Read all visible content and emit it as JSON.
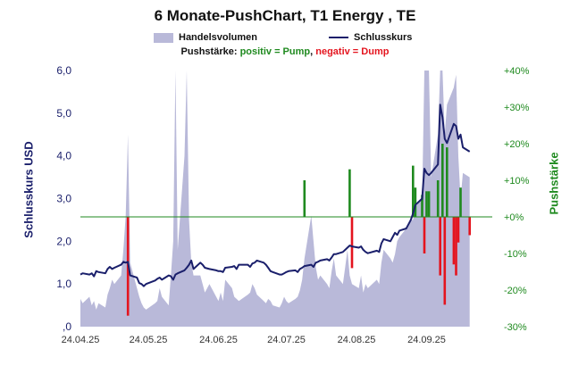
{
  "chart_data": {
    "type": "line",
    "title": "6 Monate-PushChart, T1 Energy , TE",
    "legend": {
      "volume_label": "Handelsvolumen",
      "close_label": "Schlusskurs",
      "push_prefix": "Pushstärke: ",
      "push_positive": "positiv = Pump",
      "push_separator": ", ",
      "push_negative": "negativ = Dump"
    },
    "ylabel_left": "Schlusskurs USD",
    "ylabel_right": "Pushstärke",
    "ylim_left": [
      0,
      6
    ],
    "ylim_right": [
      -30,
      40
    ],
    "left_ticks": [
      ",0",
      "1,0",
      "2,0",
      "3,0",
      "4,0",
      "5,0",
      "6,0"
    ],
    "right_ticks": [
      "-30%",
      "-20%",
      "-10%",
      "+0%",
      "+10%",
      "+20%",
      "+30%",
      "+40%"
    ],
    "x_ticks": [
      "24.04.25",
      "24.05.25",
      "24.06.25",
      "24.07.25",
      "24.08.25",
      "24.09.25"
    ],
    "x_range": [
      "2025-04-24",
      "2025-10-23"
    ],
    "series": [
      {
        "name": "Schlusskurs",
        "axis": "left",
        "points": [
          [
            "2025-04-24",
            1.22
          ],
          [
            "2025-04-25",
            1.25
          ],
          [
            "2025-04-28",
            1.22
          ],
          [
            "2025-04-29",
            1.25
          ],
          [
            "2025-04-30",
            1.18
          ],
          [
            "2025-05-01",
            1.3
          ],
          [
            "2025-05-02",
            1.28
          ],
          [
            "2025-05-05",
            1.25
          ],
          [
            "2025-05-06",
            1.35
          ],
          [
            "2025-05-07",
            1.4
          ],
          [
            "2025-05-08",
            1.35
          ],
          [
            "2025-05-09",
            1.38
          ],
          [
            "2025-05-12",
            1.45
          ],
          [
            "2025-05-13",
            1.52
          ],
          [
            "2025-05-14",
            1.5
          ],
          [
            "2025-05-15",
            1.52
          ],
          [
            "2025-05-16",
            1.2
          ],
          [
            "2025-05-19",
            1.15
          ],
          [
            "2025-05-20",
            1.02
          ],
          [
            "2025-05-21",
            1.0
          ],
          [
            "2025-05-22",
            0.95
          ],
          [
            "2025-05-23",
            1.0
          ],
          [
            "2025-05-27",
            1.08
          ],
          [
            "2025-05-28",
            1.12
          ],
          [
            "2025-05-29",
            1.15
          ],
          [
            "2025-05-30",
            1.1
          ],
          [
            "2025-06-02",
            1.2
          ],
          [
            "2025-06-03",
            1.18
          ],
          [
            "2025-06-04",
            1.1
          ],
          [
            "2025-06-05",
            1.22
          ],
          [
            "2025-06-06",
            1.25
          ],
          [
            "2025-06-09",
            1.32
          ],
          [
            "2025-06-10",
            1.38
          ],
          [
            "2025-06-11",
            1.45
          ],
          [
            "2025-06-12",
            1.55
          ],
          [
            "2025-06-13",
            1.35
          ],
          [
            "2025-06-16",
            1.5
          ],
          [
            "2025-06-17",
            1.45
          ],
          [
            "2025-06-18",
            1.38
          ],
          [
            "2025-06-20",
            1.35
          ],
          [
            "2025-06-23",
            1.32
          ],
          [
            "2025-06-24",
            1.3
          ],
          [
            "2025-06-25",
            1.3
          ],
          [
            "2025-06-26",
            1.28
          ],
          [
            "2025-06-27",
            1.38
          ],
          [
            "2025-06-30",
            1.4
          ],
          [
            "2025-07-01",
            1.42
          ],
          [
            "2025-07-02",
            1.35
          ],
          [
            "2025-07-03",
            1.45
          ],
          [
            "2025-07-07",
            1.45
          ],
          [
            "2025-07-08",
            1.4
          ],
          [
            "2025-07-09",
            1.48
          ],
          [
            "2025-07-10",
            1.5
          ],
          [
            "2025-07-11",
            1.55
          ],
          [
            "2025-07-14",
            1.5
          ],
          [
            "2025-07-15",
            1.45
          ],
          [
            "2025-07-16",
            1.38
          ],
          [
            "2025-07-17",
            1.3
          ],
          [
            "2025-07-18",
            1.28
          ],
          [
            "2025-07-21",
            1.22
          ],
          [
            "2025-07-22",
            1.22
          ],
          [
            "2025-07-23",
            1.25
          ],
          [
            "2025-07-24",
            1.28
          ],
          [
            "2025-07-25",
            1.3
          ],
          [
            "2025-07-28",
            1.32
          ],
          [
            "2025-07-29",
            1.28
          ],
          [
            "2025-07-30",
            1.35
          ],
          [
            "2025-07-31",
            1.38
          ],
          [
            "2025-08-01",
            1.42
          ],
          [
            "2025-08-04",
            1.45
          ],
          [
            "2025-08-05",
            1.4
          ],
          [
            "2025-08-06",
            1.5
          ],
          [
            "2025-08-07",
            1.52
          ],
          [
            "2025-08-08",
            1.55
          ],
          [
            "2025-08-11",
            1.58
          ],
          [
            "2025-08-12",
            1.55
          ],
          [
            "2025-08-13",
            1.62
          ],
          [
            "2025-08-14",
            1.7
          ],
          [
            "2025-08-15",
            1.7
          ],
          [
            "2025-08-18",
            1.75
          ],
          [
            "2025-08-19",
            1.8
          ],
          [
            "2025-08-20",
            1.85
          ],
          [
            "2025-08-21",
            1.9
          ],
          [
            "2025-08-22",
            1.88
          ],
          [
            "2025-08-25",
            1.85
          ],
          [
            "2025-08-26",
            1.88
          ],
          [
            "2025-08-27",
            1.8
          ],
          [
            "2025-08-28",
            1.75
          ],
          [
            "2025-08-29",
            1.72
          ],
          [
            "2025-09-02",
            1.78
          ],
          [
            "2025-09-03",
            1.75
          ],
          [
            "2025-09-04",
            1.95
          ],
          [
            "2025-09-05",
            2.05
          ],
          [
            "2025-09-08",
            2.0
          ],
          [
            "2025-09-09",
            2.1
          ],
          [
            "2025-09-10",
            2.2
          ],
          [
            "2025-09-11",
            2.15
          ],
          [
            "2025-09-12",
            2.25
          ],
          [
            "2025-09-15",
            2.3
          ],
          [
            "2025-09-16",
            2.4
          ],
          [
            "2025-09-17",
            2.5
          ],
          [
            "2025-09-18",
            2.65
          ],
          [
            "2025-09-19",
            2.85
          ],
          [
            "2025-09-22",
            3.0
          ],
          [
            "2025-09-23",
            3.7
          ],
          [
            "2025-09-24",
            3.6
          ],
          [
            "2025-09-25",
            3.55
          ],
          [
            "2025-09-26",
            3.6
          ],
          [
            "2025-09-29",
            3.8
          ],
          [
            "2025-09-30",
            5.2
          ],
          [
            "2025-10-01",
            4.9
          ],
          [
            "2025-10-02",
            4.4
          ],
          [
            "2025-10-03",
            4.3
          ],
          [
            "2025-10-06",
            4.75
          ],
          [
            "2025-10-07",
            4.7
          ],
          [
            "2025-10-08",
            4.4
          ],
          [
            "2025-10-09",
            4.5
          ],
          [
            "2025-10-10",
            4.2
          ],
          [
            "2025-10-13",
            4.1
          ]
        ]
      },
      {
        "name": "Handelsvolumen",
        "axis": "left",
        "scale": "relative",
        "points": [
          [
            "2025-04-24",
            0.65
          ],
          [
            "2025-04-25",
            0.55
          ],
          [
            "2025-04-28",
            0.7
          ],
          [
            "2025-04-29",
            0.5
          ],
          [
            "2025-04-30",
            0.6
          ],
          [
            "2025-05-01",
            0.4
          ],
          [
            "2025-05-02",
            0.55
          ],
          [
            "2025-05-05",
            0.45
          ],
          [
            "2025-05-06",
            0.75
          ],
          [
            "2025-05-07",
            0.9
          ],
          [
            "2025-05-08",
            1.1
          ],
          [
            "2025-05-09",
            1.0
          ],
          [
            "2025-05-12",
            1.2
          ],
          [
            "2025-05-13",
            1.8
          ],
          [
            "2025-05-14",
            2.6
          ],
          [
            "2025-05-15",
            4.5
          ],
          [
            "2025-05-16",
            1.5
          ],
          [
            "2025-05-19",
            0.9
          ],
          [
            "2025-05-20",
            0.7
          ],
          [
            "2025-05-21",
            0.55
          ],
          [
            "2025-05-22",
            0.45
          ],
          [
            "2025-05-23",
            0.4
          ],
          [
            "2025-05-27",
            0.55
          ],
          [
            "2025-05-28",
            0.6
          ],
          [
            "2025-05-29",
            0.9
          ],
          [
            "2025-05-30",
            0.7
          ],
          [
            "2025-06-02",
            0.5
          ],
          [
            "2025-06-03",
            1.2
          ],
          [
            "2025-06-04",
            2.0
          ],
          [
            "2025-06-05",
            6.0
          ],
          [
            "2025-06-06",
            1.8
          ],
          [
            "2025-06-09",
            4.0
          ],
          [
            "2025-06-10",
            6.0
          ],
          [
            "2025-06-11",
            2.5
          ],
          [
            "2025-06-12",
            1.5
          ],
          [
            "2025-06-13",
            1.2
          ],
          [
            "2025-06-16",
            1.2
          ],
          [
            "2025-06-17",
            1.0
          ],
          [
            "2025-06-18",
            0.8
          ],
          [
            "2025-06-20",
            1.0
          ],
          [
            "2025-06-23",
            0.7
          ],
          [
            "2025-06-24",
            0.6
          ],
          [
            "2025-06-25",
            0.8
          ],
          [
            "2025-06-26",
            0.6
          ],
          [
            "2025-06-27",
            1.1
          ],
          [
            "2025-06-30",
            0.9
          ],
          [
            "2025-07-01",
            0.7
          ],
          [
            "2025-07-02",
            0.65
          ],
          [
            "2025-07-03",
            0.6
          ],
          [
            "2025-07-07",
            0.75
          ],
          [
            "2025-07-08",
            0.8
          ],
          [
            "2025-07-09",
            1.0
          ],
          [
            "2025-07-10",
            0.9
          ],
          [
            "2025-07-11",
            0.75
          ],
          [
            "2025-07-14",
            0.6
          ],
          [
            "2025-07-15",
            0.55
          ],
          [
            "2025-07-16",
            0.65
          ],
          [
            "2025-07-17",
            0.6
          ],
          [
            "2025-07-18",
            0.5
          ],
          [
            "2025-07-21",
            0.45
          ],
          [
            "2025-07-22",
            0.55
          ],
          [
            "2025-07-23",
            0.7
          ],
          [
            "2025-07-24",
            0.6
          ],
          [
            "2025-07-25",
            0.55
          ],
          [
            "2025-07-28",
            0.65
          ],
          [
            "2025-07-29",
            0.7
          ],
          [
            "2025-07-30",
            0.85
          ],
          [
            "2025-07-31",
            1.1
          ],
          [
            "2025-08-01",
            1.6
          ],
          [
            "2025-08-04",
            2.6
          ],
          [
            "2025-08-05",
            2.0
          ],
          [
            "2025-08-06",
            1.4
          ],
          [
            "2025-08-07",
            1.1
          ],
          [
            "2025-08-08",
            1.2
          ],
          [
            "2025-08-11",
            1.0
          ],
          [
            "2025-08-12",
            0.9
          ],
          [
            "2025-08-13",
            1.3
          ],
          [
            "2025-08-14",
            1.6
          ],
          [
            "2025-08-15",
            1.2
          ],
          [
            "2025-08-18",
            1.0
          ],
          [
            "2025-08-19",
            1.4
          ],
          [
            "2025-08-20",
            1.8
          ],
          [
            "2025-08-21",
            1.2
          ],
          [
            "2025-08-22",
            1.0
          ],
          [
            "2025-08-25",
            0.9
          ],
          [
            "2025-08-26",
            1.2
          ],
          [
            "2025-08-27",
            0.8
          ],
          [
            "2025-08-28",
            1.0
          ],
          [
            "2025-08-29",
            0.9
          ],
          [
            "2025-09-02",
            1.1
          ],
          [
            "2025-09-03",
            1.0
          ],
          [
            "2025-09-04",
            1.5
          ],
          [
            "2025-09-05",
            1.8
          ],
          [
            "2025-09-08",
            1.6
          ],
          [
            "2025-09-09",
            1.5
          ],
          [
            "2025-09-10",
            1.7
          ],
          [
            "2025-09-11",
            2.0
          ],
          [
            "2025-09-12",
            2.1
          ],
          [
            "2025-09-15",
            2.3
          ],
          [
            "2025-09-16",
            2.4
          ],
          [
            "2025-09-17",
            2.5
          ],
          [
            "2025-09-18",
            2.5
          ],
          [
            "2025-09-19",
            2.8
          ],
          [
            "2025-09-22",
            3.0
          ],
          [
            "2025-09-23",
            6.0
          ],
          [
            "2025-09-24",
            6.0
          ],
          [
            "2025-09-25",
            6.0
          ],
          [
            "2025-09-26",
            3.5
          ],
          [
            "2025-09-29",
            4.5
          ],
          [
            "2025-09-30",
            6.0
          ],
          [
            "2025-10-01",
            6.0
          ],
          [
            "2025-10-02",
            4.5
          ],
          [
            "2025-10-03",
            5.2
          ],
          [
            "2025-10-06",
            5.6
          ],
          [
            "2025-10-07",
            5.9
          ],
          [
            "2025-10-08",
            4.0
          ],
          [
            "2025-10-09",
            3.0
          ],
          [
            "2025-10-10",
            3.6
          ],
          [
            "2025-10-13",
            3.5
          ]
        ]
      },
      {
        "name": "Pushstärke",
        "axis": "right",
        "unit": "%",
        "points": [
          [
            "2025-05-15",
            -27
          ],
          [
            "2025-08-01",
            10
          ],
          [
            "2025-08-21",
            13
          ],
          [
            "2025-08-22",
            -14
          ],
          [
            "2025-09-18",
            14
          ],
          [
            "2025-09-19",
            8
          ],
          [
            "2025-09-22",
            6
          ],
          [
            "2025-09-23",
            -10
          ],
          [
            "2025-09-24",
            7
          ],
          [
            "2025-09-25",
            7
          ],
          [
            "2025-09-29",
            10
          ],
          [
            "2025-09-30",
            -16
          ],
          [
            "2025-10-01",
            20
          ],
          [
            "2025-10-02",
            -24
          ],
          [
            "2025-10-03",
            19
          ],
          [
            "2025-10-06",
            -13
          ],
          [
            "2025-10-07",
            -16
          ],
          [
            "2025-10-08",
            -7
          ],
          [
            "2025-10-09",
            8
          ],
          [
            "2025-10-13",
            -5
          ]
        ]
      }
    ],
    "colors": {
      "price": "#1a1f6b",
      "volume": "#b9b9d9",
      "push_positive": "#1f8a1f",
      "push_negative": "#e4141e",
      "left_axis": "#1a1f6b",
      "right_axis": "#1f8a1f",
      "zero_line": "#1f8a1f"
    }
  }
}
